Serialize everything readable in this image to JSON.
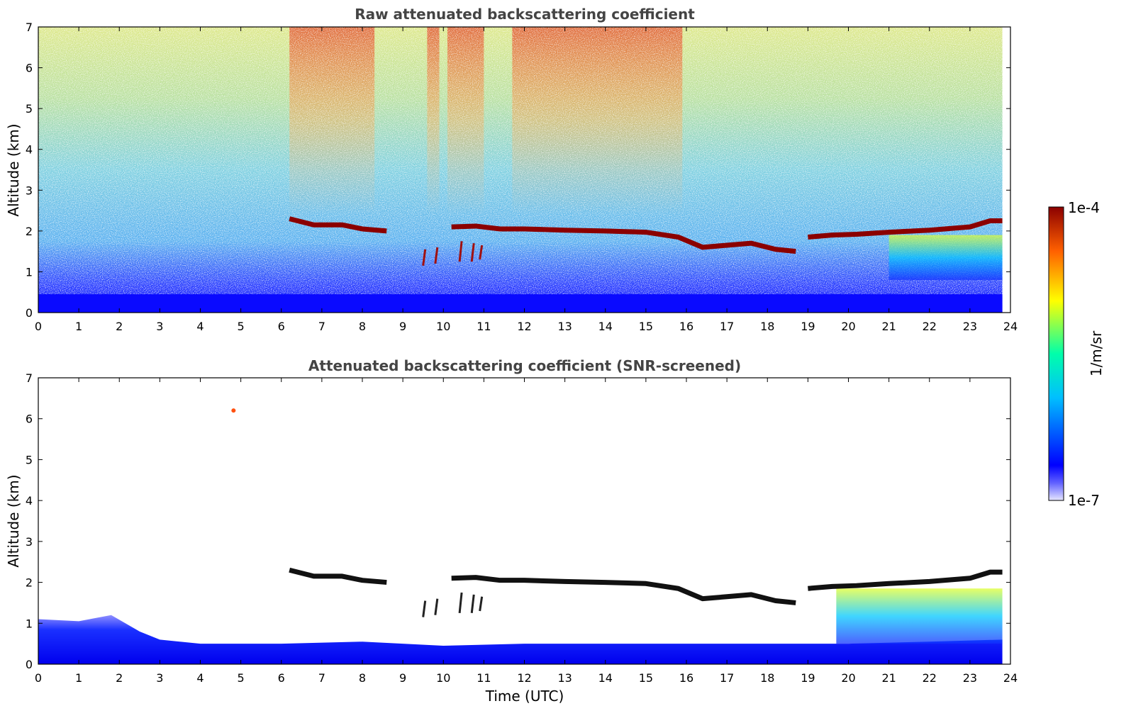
{
  "chart_data": [
    {
      "type": "heatmap",
      "title": "Raw attenuated backscattering coefficient",
      "ylabel": "Altitude (km)",
      "xlabel": "",
      "xlim": [
        0,
        24
      ],
      "ylim": [
        0,
        7
      ],
      "xticks": [
        "0",
        "1",
        "2",
        "3",
        "4",
        "5",
        "6",
        "7",
        "8",
        "9",
        "10",
        "11",
        "12",
        "13",
        "14",
        "15",
        "16",
        "17",
        "18",
        "19",
        "20",
        "21",
        "22",
        "23",
        "24"
      ],
      "yticks": [
        "0",
        "1",
        "2",
        "3",
        "4",
        "5",
        "6",
        "7"
      ],
      "cloud_layer": {
        "time": [
          6.2,
          6.8,
          7.5,
          8.0,
          8.6,
          10.2,
          10.8,
          11.4,
          12.0,
          13.0,
          14.0,
          15.0,
          15.8,
          16.4,
          17.0,
          17.6,
          18.2,
          18.7,
          19.0,
          19.6,
          20.2,
          21.0,
          22.0,
          23.0,
          23.5,
          23.8
        ],
        "altitude_km": [
          2.3,
          2.15,
          2.15,
          2.05,
          2.0,
          2.1,
          2.12,
          2.05,
          2.05,
          2.02,
          2.0,
          1.97,
          1.85,
          1.6,
          1.65,
          1.7,
          1.55,
          1.5,
          1.85,
          1.9,
          1.92,
          1.97,
          2.02,
          2.1,
          2.25,
          2.25
        ]
      },
      "background_gradient_note": "",
      "data_end_time": 23.8
    },
    {
      "type": "heatmap",
      "title": "Attenuated backscattering coefficient (SNR-screened)",
      "ylabel": "Altitude (km)",
      "xlabel": "Time (UTC)",
      "xlim": [
        0,
        24
      ],
      "ylim": [
        0,
        7
      ],
      "xticks": [
        "0",
        "1",
        "2",
        "3",
        "4",
        "5",
        "6",
        "7",
        "8",
        "9",
        "10",
        "11",
        "12",
        "13",
        "14",
        "15",
        "16",
        "17",
        "18",
        "19",
        "20",
        "21",
        "22",
        "23",
        "24"
      ],
      "yticks": [
        "0",
        "1",
        "2",
        "3",
        "4",
        "5",
        "6",
        "7"
      ],
      "cloud_layer": {
        "time": [
          6.2,
          6.8,
          7.5,
          8.0,
          8.6,
          10.2,
          10.8,
          11.4,
          12.0,
          13.0,
          14.0,
          15.0,
          15.8,
          16.4,
          17.0,
          17.6,
          18.2,
          18.7,
          19.0,
          19.6,
          20.2,
          21.0,
          22.0,
          23.0,
          23.5,
          23.8
        ],
        "altitude_km": [
          2.3,
          2.15,
          2.15,
          2.05,
          2.0,
          2.1,
          2.12,
          2.05,
          2.05,
          2.02,
          2.0,
          1.97,
          1.85,
          1.6,
          1.65,
          1.7,
          1.55,
          1.5,
          1.85,
          1.9,
          1.92,
          1.97,
          2.02,
          2.1,
          2.25,
          2.25
        ]
      },
      "boundary_layer_top": {
        "time": [
          0,
          1,
          1.8,
          2.5,
          3,
          4,
          6,
          8,
          9,
          10,
          12,
          14,
          16,
          18,
          20,
          22,
          23.8
        ],
        "altitude_km": [
          1.1,
          1.05,
          1.2,
          0.8,
          0.6,
          0.5,
          0.5,
          0.55,
          0.5,
          0.45,
          0.5,
          0.5,
          0.5,
          0.5,
          0.5,
          0.55,
          0.6
        ]
      },
      "data_end_time": 23.8
    }
  ],
  "colorbar": {
    "label": "1/m/sr",
    "max_label": "1e-4",
    "min_label": "1e-7",
    "scale": "log",
    "colors": [
      "#e6e6ff",
      "#0000ff",
      "#00bfff",
      "#00ffaa",
      "#ffff00",
      "#ff8000",
      "#8b0000"
    ]
  }
}
